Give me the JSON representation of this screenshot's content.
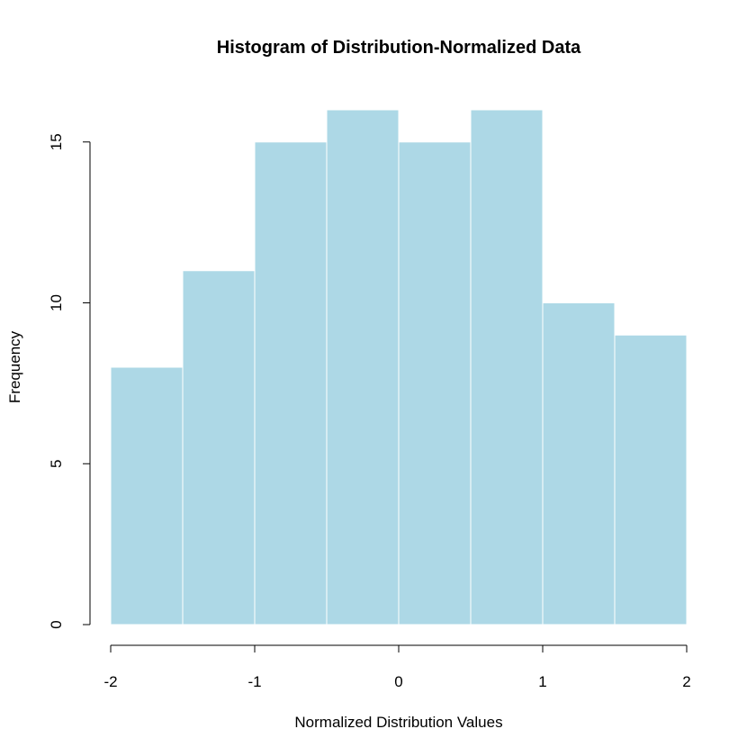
{
  "chart_data": {
    "type": "bar",
    "title": "Histogram of Distribution-Normalized Data",
    "xlabel": "Normalized Distribution Values",
    "ylabel": "Frequency",
    "bins": [
      {
        "start": -2.0,
        "end": -1.5,
        "count": 8
      },
      {
        "start": -1.5,
        "end": -1.0,
        "count": 11
      },
      {
        "start": -1.0,
        "end": -0.5,
        "count": 15
      },
      {
        "start": -0.5,
        "end": 0.0,
        "count": 16
      },
      {
        "start": 0.0,
        "end": 0.5,
        "count": 15
      },
      {
        "start": 0.5,
        "end": 1.0,
        "count": 16
      },
      {
        "start": 1.0,
        "end": 1.5,
        "count": 10
      },
      {
        "start": 1.5,
        "end": 2.0,
        "count": 9
      }
    ],
    "xlim": [
      -2,
      2
    ],
    "ylim": [
      0,
      16
    ],
    "x_ticks": [
      -2,
      -1,
      0,
      1,
      2
    ],
    "x_tick_labels": [
      "-2",
      "-1",
      "0",
      "1",
      "2"
    ],
    "y_ticks": [
      0,
      5,
      10,
      15
    ],
    "y_tick_labels": [
      "0",
      "5",
      "10",
      "15"
    ],
    "bar_color": "#add8e6",
    "bar_border_color": "#ffffff",
    "grid": false
  }
}
